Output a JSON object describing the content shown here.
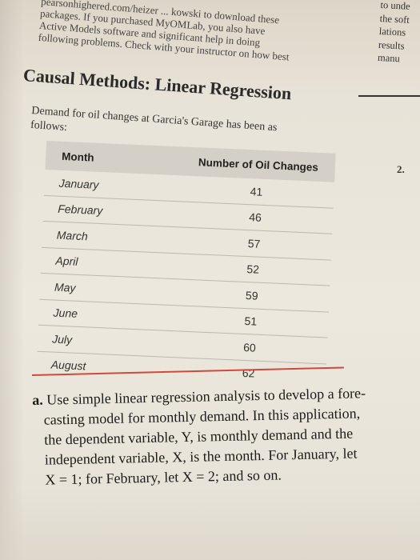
{
  "top_text": [
    "pearsonhighered.com/heizer ... kowski to download these",
    "packages. If you purchased MyOMLab, you also have",
    "Active Models software and significant help in doing",
    "following problems. Check with your instructor on how best"
  ],
  "right_margin": [
    "to unde",
    "the soft",
    "lations",
    "results",
    "manu"
  ],
  "section_header": "Causal Methods: Linear Regression",
  "intro": [
    "Demand for oil changes at Garcia's Garage has been as",
    "follows:"
  ],
  "problem_number": "2.",
  "table": {
    "headers": [
      "Month",
      "Number of Oil Changes"
    ],
    "rows": [
      [
        "January",
        "41"
      ],
      [
        "February",
        "46"
      ],
      [
        "March",
        "57"
      ],
      [
        "April",
        "52"
      ],
      [
        "May",
        "59"
      ],
      [
        "June",
        "51"
      ],
      [
        "July",
        "60"
      ],
      [
        "August",
        "62"
      ]
    ]
  },
  "part_a": {
    "label": "a.",
    "lines": [
      "Use simple linear regression analysis to develop a fore-",
      "casting model for monthly demand. In this application,",
      "the dependent variable, Y, is monthly demand and the",
      "independent variable, X, is the month. For January, let",
      "X = 1; for February, let X = 2; and so on."
    ]
  }
}
